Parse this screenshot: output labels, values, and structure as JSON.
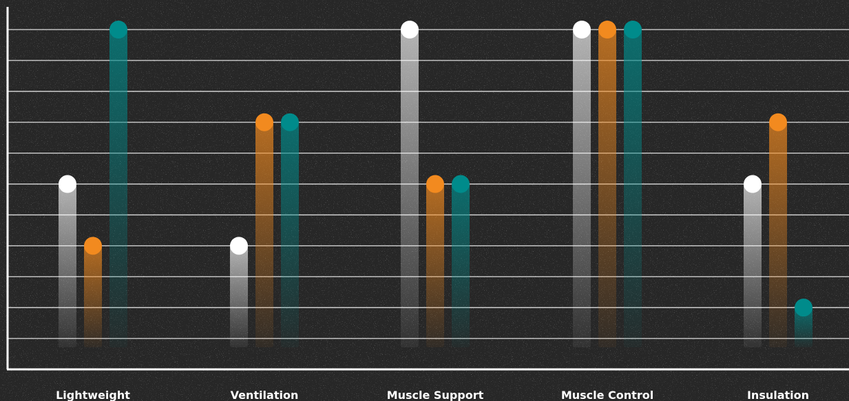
{
  "colors": {
    "background": "#272727",
    "gridline": "#f2f2f2",
    "axis": "#ffffff",
    "label": "#ffffff"
  },
  "chart_data": {
    "type": "bar",
    "style": "lollipop with gradient stems",
    "title": "",
    "xlabel": "",
    "ylabel": "",
    "categories": [
      "Lightweight",
      "Ventilation",
      "Muscle Support",
      "Muscle Control",
      "Insulation"
    ],
    "ylim": [
      0,
      11
    ],
    "y_gridlines": [
      1,
      2,
      3,
      4,
      5,
      6,
      7,
      8,
      9,
      10,
      11
    ],
    "grid": true,
    "legend": "none",
    "series": [
      {
        "color": "#ffffff",
        "values": [
          6,
          4,
          11,
          11,
          6
        ]
      },
      {
        "color": "#f28a1f",
        "values": [
          4,
          8,
          6,
          11,
          8
        ]
      },
      {
        "color": "#008b8b",
        "values": [
          11,
          8,
          6,
          11,
          2
        ]
      }
    ]
  }
}
